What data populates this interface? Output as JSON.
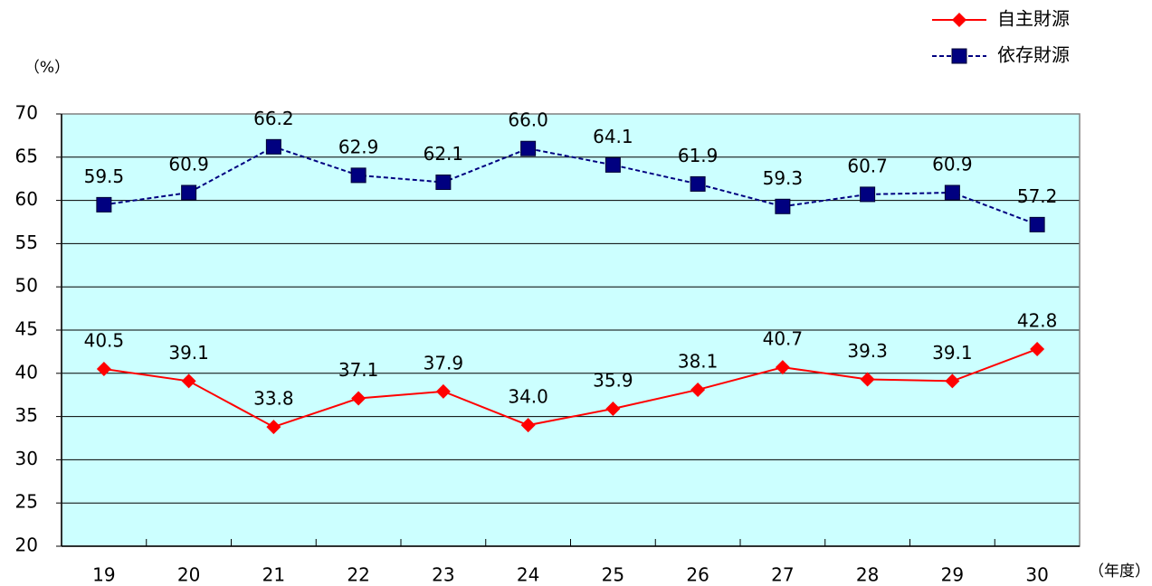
{
  "chart_data": {
    "type": "line",
    "y_label": "（%）",
    "x_label": "（年度）",
    "categories": [
      "19",
      "20",
      "21",
      "22",
      "23",
      "24",
      "25",
      "26",
      "27",
      "28",
      "29",
      "30"
    ],
    "series": [
      {
        "name": "自主財源",
        "color": "#ff0000",
        "marker": "diamond",
        "dashed": false,
        "values": [
          40.5,
          39.1,
          33.8,
          37.1,
          37.9,
          34.0,
          35.9,
          38.1,
          40.7,
          39.3,
          39.1,
          42.8
        ],
        "value_labels": [
          "40.5",
          "39.1",
          "33.8",
          "37.1",
          "37.9",
          "34.0",
          "35.9",
          "38.1",
          "40.7",
          "39.3",
          "39.1",
          "42.8"
        ]
      },
      {
        "name": "依存財源",
        "color": "#000080",
        "marker": "square",
        "dashed": true,
        "values": [
          59.5,
          60.9,
          66.2,
          62.9,
          62.1,
          66.0,
          64.1,
          61.9,
          59.3,
          60.7,
          60.9,
          57.2
        ],
        "value_labels": [
          "59.5",
          "60.9",
          "66.2",
          "62.9",
          "62.1",
          "66.0",
          "64.1",
          "61.9",
          "59.3",
          "60.7",
          "60.9",
          "57.2"
        ]
      }
    ],
    "ylim": [
      20,
      70
    ],
    "yticks": [
      20,
      25,
      30,
      35,
      40,
      45,
      50,
      55,
      60,
      65,
      70
    ],
    "grid": true,
    "plot_background": "#ccffff",
    "legend": "top-right"
  }
}
